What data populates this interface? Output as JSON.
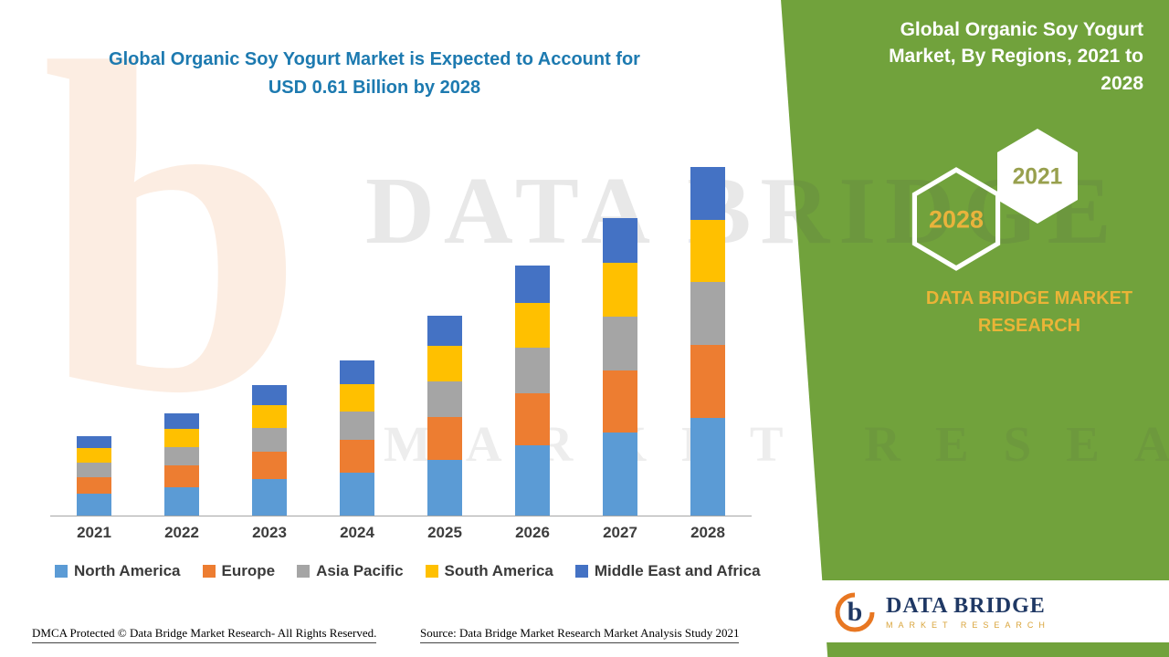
{
  "header": {
    "title_line1": "Global Organic Soy Yogurt Market is Expected to Account for",
    "title_line2": "USD 0.61 Billion by 2028",
    "title_color": "#1d7ab0"
  },
  "side_panel": {
    "title": "Global Organic Soy Yogurt Market, By Regions, 2021 to 2028",
    "badge_2028": "2028",
    "badge_2021": "2021",
    "brand": "DATA BRIDGE MARKET RESEARCH",
    "panel_color": "#71a23c",
    "badge_2028_text_color": "#e9b33c",
    "badge_2021_text_color": "#98a04e"
  },
  "chart_data": {
    "type": "bar",
    "stacked": true,
    "title": "Global Organic Soy Yogurt Market is Expected to Account for USD 0.61 Billion by 2028",
    "unit": "USD Billion",
    "categories": [
      "2021",
      "2022",
      "2023",
      "2024",
      "2025",
      "2026",
      "2027",
      "2028"
    ],
    "series": [
      {
        "name": "North America",
        "color": "#5b9bd5",
        "values": [
          0.039,
          0.05,
          0.064,
          0.076,
          0.098,
          0.123,
          0.146,
          0.171
        ]
      },
      {
        "name": "Europe",
        "color": "#ed7d31",
        "values": [
          0.029,
          0.038,
          0.048,
          0.057,
          0.074,
          0.092,
          0.109,
          0.128
        ]
      },
      {
        "name": "Asia Pacific",
        "color": "#a5a5a5",
        "values": [
          0.025,
          0.032,
          0.041,
          0.049,
          0.063,
          0.079,
          0.094,
          0.11
        ]
      },
      {
        "name": "South America",
        "color": "#ffc000",
        "values": [
          0.025,
          0.032,
          0.041,
          0.049,
          0.063,
          0.079,
          0.094,
          0.11
        ]
      },
      {
        "name": "Middle East and Africa",
        "color": "#4472c4",
        "values": [
          0.021,
          0.027,
          0.035,
          0.041,
          0.053,
          0.066,
          0.078,
          0.092
        ]
      }
    ],
    "totals": [
      0.139,
      0.179,
      0.229,
      0.272,
      0.351,
      0.439,
      0.521,
      0.611
    ],
    "ylim": [
      0,
      0.65
    ],
    "legend_position": "bottom",
    "grid": false
  },
  "watermark": {
    "logo_glyph": "b",
    "line1": "DATA BRIDGE",
    "line2": "MARKET RESEARCH"
  },
  "footer": {
    "dmca": "DMCA Protected © Data Bridge Market Research- All Rights Reserved.",
    "source": "Source: Data Bridge Market Research Market Analysis Study 2021"
  },
  "logo": {
    "title": "DATA BRIDGE",
    "subtitle": "MARKET RESEARCH"
  }
}
